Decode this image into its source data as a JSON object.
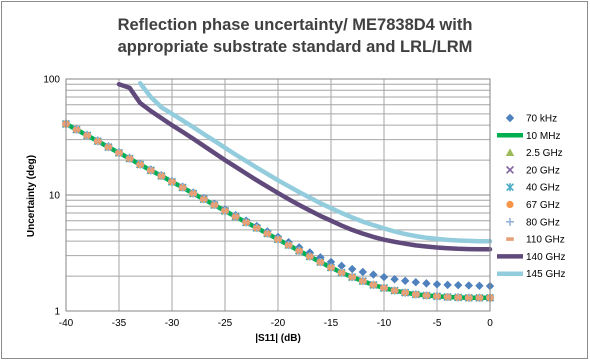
{
  "chart_data": {
    "type": "scatter",
    "title_lines": [
      "Reflection phase uncertainty/ ME7838D4 with",
      "appropriate substrate standard and LRL/LRM"
    ],
    "xlabel": "|S11| (dB)",
    "ylabel": "Uncertainty (deg)",
    "xlim": [
      -40,
      0
    ],
    "ylim": [
      1,
      100
    ],
    "y_scale": "log",
    "x_ticks": [
      -40,
      -35,
      -30,
      -25,
      -20,
      -15,
      -10,
      -5,
      0
    ],
    "y_ticks": [
      1,
      10,
      100
    ],
    "grid": true,
    "legend_position": "right",
    "x": [
      -40,
      -39,
      -38,
      -37,
      -36,
      -35,
      -34,
      -33,
      -32,
      -31,
      -30,
      -29,
      -28,
      -27,
      -26,
      -25,
      -24,
      -23,
      -22,
      -21,
      -20,
      -19,
      -18,
      -17,
      -16,
      -15,
      -14,
      -13,
      -12,
      -11,
      -10,
      -9,
      -8,
      -7,
      -6,
      -5,
      -4,
      -3,
      -2,
      -1,
      0
    ],
    "series": [
      {
        "name": "70 kHz",
        "marker": "diamond",
        "color": "#4f81bd",
        "values": [
          41.5,
          37.0,
          33.0,
          29.5,
          26.3,
          23.4,
          20.9,
          18.6,
          16.6,
          14.8,
          13.2,
          11.8,
          10.5,
          9.4,
          8.4,
          7.5,
          6.7,
          6.0,
          5.4,
          4.85,
          4.35,
          3.92,
          3.54,
          3.2,
          2.9,
          2.65,
          2.45,
          2.3,
          2.17,
          2.06,
          1.96,
          1.88,
          1.82,
          1.77,
          1.73,
          1.7,
          1.68,
          1.67,
          1.66,
          1.65,
          1.64
        ]
      },
      {
        "name": "10 MHz",
        "marker": "line",
        "color": "#00b050",
        "values": [
          41.0,
          36.6,
          32.6,
          29.1,
          25.9,
          23.1,
          20.6,
          18.3,
          16.3,
          14.6,
          13.0,
          11.6,
          10.3,
          9.2,
          8.2,
          7.3,
          6.5,
          5.8,
          5.2,
          4.65,
          4.15,
          3.7,
          3.3,
          2.95,
          2.64,
          2.37,
          2.14,
          1.96,
          1.81,
          1.68,
          1.58,
          1.5,
          1.44,
          1.39,
          1.36,
          1.34,
          1.32,
          1.31,
          1.3,
          1.3,
          1.3
        ]
      },
      {
        "name": "2.5 GHz",
        "marker": "triangle",
        "color": "#9bbb59",
        "values": [
          41.0,
          36.6,
          32.6,
          29.1,
          25.9,
          23.1,
          20.6,
          18.3,
          16.3,
          14.6,
          13.0,
          11.6,
          10.3,
          9.2,
          8.2,
          7.3,
          6.5,
          5.8,
          5.2,
          4.65,
          4.15,
          3.7,
          3.3,
          2.95,
          2.64,
          2.37,
          2.14,
          1.96,
          1.81,
          1.68,
          1.58,
          1.5,
          1.44,
          1.39,
          1.36,
          1.34,
          1.32,
          1.31,
          1.3,
          1.3,
          1.3
        ]
      },
      {
        "name": "20 GHz",
        "marker": "x",
        "color": "#8064a2",
        "values": [
          41.0,
          36.6,
          32.6,
          29.1,
          25.9,
          23.1,
          20.6,
          18.3,
          16.3,
          14.6,
          13.0,
          11.6,
          10.3,
          9.2,
          8.2,
          7.3,
          6.5,
          5.8,
          5.2,
          4.65,
          4.15,
          3.7,
          3.3,
          2.95,
          2.64,
          2.37,
          2.14,
          1.96,
          1.81,
          1.68,
          1.58,
          1.5,
          1.44,
          1.39,
          1.36,
          1.34,
          1.32,
          1.31,
          1.3,
          1.3,
          1.3
        ]
      },
      {
        "name": "40 GHz",
        "marker": "star",
        "color": "#4bacc6",
        "values": [
          41.0,
          36.6,
          32.6,
          29.1,
          25.9,
          23.1,
          20.6,
          18.3,
          16.3,
          14.6,
          13.0,
          11.6,
          10.3,
          9.2,
          8.2,
          7.3,
          6.5,
          5.8,
          5.2,
          4.65,
          4.15,
          3.7,
          3.3,
          2.95,
          2.64,
          2.37,
          2.14,
          1.96,
          1.81,
          1.68,
          1.58,
          1.5,
          1.44,
          1.39,
          1.36,
          1.34,
          1.32,
          1.31,
          1.3,
          1.3,
          1.3
        ]
      },
      {
        "name": "67 GHz",
        "marker": "circle",
        "color": "#f79646",
        "values": [
          41.0,
          36.6,
          32.6,
          29.1,
          25.9,
          23.1,
          20.6,
          18.3,
          16.3,
          14.6,
          13.0,
          11.6,
          10.3,
          9.2,
          8.2,
          7.3,
          6.5,
          5.8,
          5.2,
          4.65,
          4.15,
          3.7,
          3.3,
          2.95,
          2.64,
          2.37,
          2.14,
          1.96,
          1.81,
          1.68,
          1.58,
          1.5,
          1.44,
          1.39,
          1.36,
          1.34,
          1.32,
          1.31,
          1.3,
          1.3,
          1.3
        ]
      },
      {
        "name": "80 GHz",
        "marker": "plus",
        "color": "#95b3d7",
        "values": [
          41.0,
          36.6,
          32.6,
          29.1,
          25.9,
          23.1,
          20.6,
          18.3,
          16.3,
          14.6,
          13.0,
          11.6,
          10.3,
          9.2,
          8.2,
          7.3,
          6.5,
          5.8,
          5.2,
          4.65,
          4.15,
          3.7,
          3.3,
          2.95,
          2.64,
          2.37,
          2.14,
          1.96,
          1.81,
          1.68,
          1.58,
          1.5,
          1.44,
          1.39,
          1.36,
          1.34,
          1.32,
          1.31,
          1.3,
          1.3,
          1.3
        ]
      },
      {
        "name": "110 GHz",
        "marker": "dash",
        "color": "#e6a07a",
        "values": [
          41.0,
          36.6,
          32.6,
          29.1,
          25.9,
          23.1,
          20.6,
          18.3,
          16.3,
          14.6,
          13.0,
          11.6,
          10.3,
          9.2,
          8.2,
          7.3,
          6.5,
          5.8,
          5.2,
          4.65,
          4.15,
          3.7,
          3.3,
          2.95,
          2.64,
          2.37,
          2.14,
          1.96,
          1.81,
          1.68,
          1.58,
          1.5,
          1.44,
          1.39,
          1.36,
          1.34,
          1.32,
          1.31,
          1.3,
          1.3,
          1.3
        ]
      },
      {
        "name": "140 GHz",
        "marker": "line",
        "color": "#604a7b",
        "x": [
          -35,
          -34,
          -33,
          -32,
          -31,
          -30,
          -29,
          -28,
          -27,
          -26,
          -25,
          -24,
          -23,
          -22,
          -21,
          -20,
          -19,
          -18,
          -17,
          -16,
          -15,
          -14,
          -13,
          -12,
          -11,
          -10,
          -9,
          -8,
          -7,
          -6,
          -5,
          -4,
          -3,
          -2,
          -1,
          0
        ],
        "values": [
          90,
          84,
          62,
          53,
          46,
          40,
          35,
          30.5,
          26.5,
          23,
          20,
          17.5,
          15.3,
          13.4,
          11.8,
          10.4,
          9.2,
          8.2,
          7.35,
          6.6,
          6.0,
          5.45,
          5.0,
          4.65,
          4.35,
          4.12,
          3.95,
          3.8,
          3.68,
          3.6,
          3.53,
          3.48,
          3.44,
          3.42,
          3.41,
          3.4
        ]
      },
      {
        "name": "145 GHz",
        "marker": "line",
        "color": "#93cddd",
        "x": [
          -33,
          -32,
          -31,
          -30,
          -29,
          -28,
          -27,
          -26,
          -25,
          -24,
          -23,
          -22,
          -21,
          -20,
          -19,
          -18,
          -17,
          -16,
          -15,
          -14,
          -13,
          -12,
          -11,
          -10,
          -9,
          -8,
          -7,
          -6,
          -5,
          -4,
          -3,
          -2,
          -1,
          0
        ],
        "values": [
          92,
          70,
          57,
          50,
          44,
          38.5,
          33.5,
          29.3,
          25.5,
          22.3,
          19.6,
          17.2,
          15.2,
          13.4,
          11.9,
          10.6,
          9.5,
          8.5,
          7.7,
          7.0,
          6.4,
          5.9,
          5.5,
          5.15,
          4.85,
          4.6,
          4.42,
          4.28,
          4.18,
          4.1,
          4.05,
          4.02,
          4.0,
          4.0
        ]
      }
    ]
  }
}
